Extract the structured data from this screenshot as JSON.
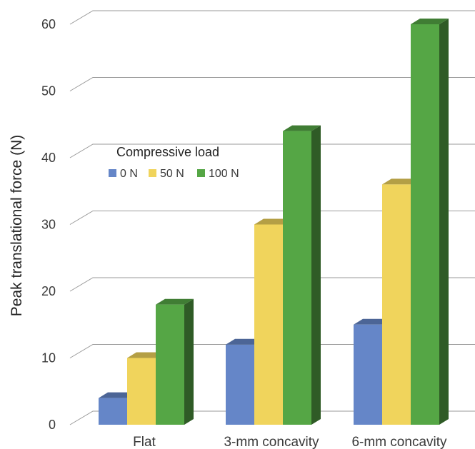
{
  "chart_data": {
    "type": "bar",
    "style": "3d-clustered-column",
    "title": "",
    "xlabel": "",
    "ylabel": "Peak translational force (N)",
    "ylim": [
      0,
      60
    ],
    "yticks": [
      "0",
      "10",
      "20",
      "30",
      "40",
      "50",
      "60"
    ],
    "grid": true,
    "categories": [
      "Flat",
      "3-mm concavity",
      "6-mm concavity"
    ],
    "legend": {
      "title": "Compressive load",
      "placement": "upper-left"
    },
    "series": [
      {
        "name": "0 N",
        "values": [
          4,
          12,
          15
        ],
        "color": "#6586c8"
      },
      {
        "name": "50 N",
        "values": [
          10,
          30,
          36
        ],
        "color": "#f0d45c"
      },
      {
        "name": "100 N",
        "values": [
          18,
          44,
          60
        ],
        "color": "#55a645"
      }
    ]
  }
}
